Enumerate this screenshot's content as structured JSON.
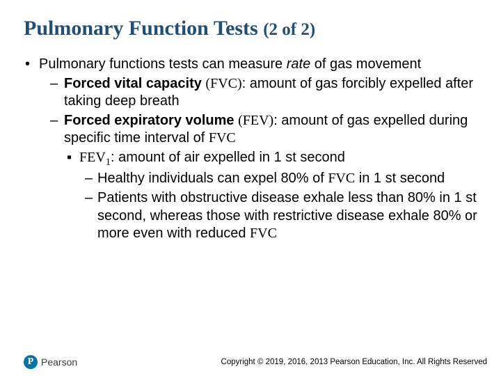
{
  "title_main": "Pulmonary Function Tests ",
  "title_sub": "(2 of 2)",
  "l1_pre": "Pulmonary functions tests can measure ",
  "l1_rate": "rate",
  "l1_post": " of gas movement",
  "fvc_bold": "Forced vital capacity ",
  "fvc_abbr": "(FVC)",
  "fvc_rest": ": amount of gas forcibly expelled after taking deep breath",
  "fev_bold": "Forced expiratory volume ",
  "fev_abbr": "(FEV)",
  "fev_rest": ": amount of gas expelled during specific time interval of ",
  "fev_fvc": "FVC",
  "fev1_pre": "FEV",
  "fev1_sub": "1",
  "fev1_rest": ": amount of air expelled in 1 st second",
  "healthy_pre": "Healthy individuals can expel 80% of ",
  "healthy_fvc": "FVC",
  "healthy_post": " in 1 st second",
  "obstructive_pre": "Patients with obstructive disease exhale less than 80% in 1 st second, whereas those with restrictive disease exhale 80% or more even with reduced ",
  "obstructive_fvc": "FVC",
  "logo_text": "Pearson",
  "copyright": "Copyright © 2019, 2016, 2013 Pearson Education, Inc. All Rights Reserved",
  "colors": {
    "title": "#1f4e79",
    "body": "#000000",
    "logo_bg": "#0073a8",
    "background": "#ffffff"
  },
  "fonts": {
    "title_family": "Times New Roman",
    "title_size_pt": 30,
    "title_sub_size_pt": 25,
    "body_family": "Arial",
    "body_size_pt": 20,
    "copyright_size_pt": 11.5
  }
}
